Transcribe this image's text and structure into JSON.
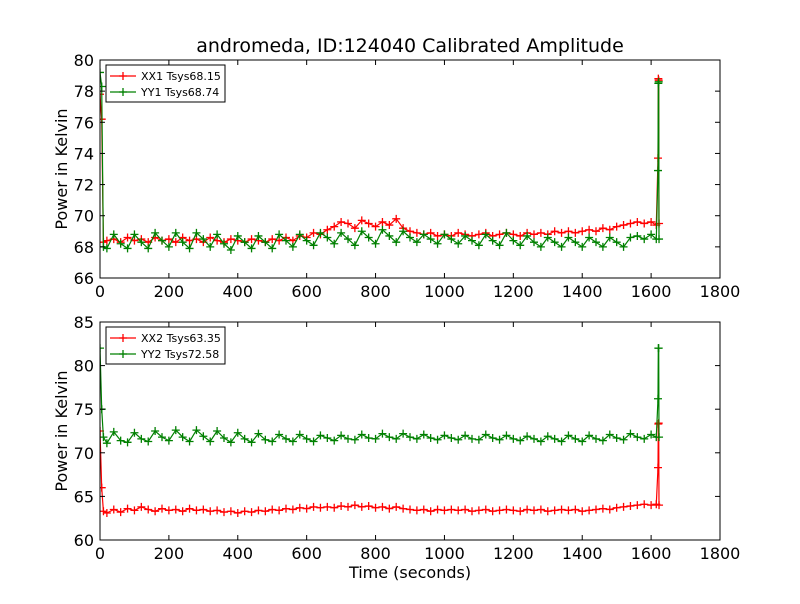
{
  "figure": {
    "title": "andromeda, ID:124040 Calibrated Amplitude",
    "xlabel": "Time (seconds)"
  },
  "chart_data": [
    {
      "type": "line",
      "ylabel": "Power in Kelvin",
      "xlim": [
        0,
        1800
      ],
      "ylim": [
        66,
        80
      ],
      "xticks": [
        "0",
        "200",
        "400",
        "600",
        "800",
        "1000",
        "1200",
        "1400",
        "1600",
        "1800"
      ],
      "yticks": [
        "66",
        "68",
        "70",
        "72",
        "74",
        "76",
        "78",
        "80"
      ],
      "legend": "top-left",
      "series": [
        {
          "name": "XX1 Tsys68.15",
          "color": "#ff0000",
          "marker": "+",
          "x": [
            0,
            5,
            10,
            20,
            40,
            60,
            80,
            100,
            120,
            140,
            160,
            180,
            200,
            220,
            240,
            260,
            280,
            300,
            320,
            340,
            360,
            380,
            400,
            420,
            440,
            460,
            480,
            500,
            520,
            540,
            560,
            580,
            600,
            620,
            640,
            660,
            680,
            700,
            720,
            740,
            760,
            780,
            800,
            820,
            840,
            860,
            880,
            900,
            920,
            940,
            960,
            980,
            1000,
            1020,
            1040,
            1060,
            1080,
            1100,
            1120,
            1140,
            1160,
            1180,
            1200,
            1220,
            1240,
            1260,
            1280,
            1300,
            1320,
            1340,
            1360,
            1380,
            1400,
            1420,
            1440,
            1460,
            1480,
            1500,
            1520,
            1540,
            1560,
            1580,
            1600,
            1615,
            1620,
            1621,
            1622,
            1623
          ],
          "y": [
            77.8,
            76.2,
            68.3,
            68.4,
            68.5,
            68.3,
            68.6,
            68.4,
            68.5,
            68.3,
            68.6,
            68.4,
            68.5,
            68.3,
            68.6,
            68.4,
            68.5,
            68.3,
            68.6,
            68.4,
            68.3,
            68.5,
            68.4,
            68.3,
            68.5,
            68.4,
            68.3,
            68.5,
            68.4,
            68.6,
            68.4,
            68.7,
            68.6,
            68.9,
            68.8,
            69.1,
            69.3,
            69.6,
            69.5,
            69.2,
            69.7,
            69.5,
            69.3,
            69.6,
            69.4,
            69.8,
            69.2,
            69.0,
            68.9,
            68.8,
            68.9,
            68.7,
            68.8,
            68.7,
            68.9,
            68.8,
            68.7,
            68.8,
            68.9,
            68.7,
            68.8,
            68.9,
            68.8,
            68.7,
            68.9,
            68.8,
            68.9,
            68.8,
            69.0,
            68.9,
            69.0,
            68.9,
            69.0,
            69.1,
            69.0,
            69.2,
            69.1,
            69.3,
            69.4,
            69.5,
            69.6,
            69.5,
            69.6,
            69.4,
            73.7,
            78.8,
            78.7,
            69.5
          ]
        },
        {
          "name": "YY1 Tsys68.74",
          "color": "#008000",
          "marker": "+",
          "x": [
            0,
            5,
            10,
            20,
            40,
            60,
            80,
            100,
            120,
            140,
            160,
            180,
            200,
            220,
            240,
            260,
            280,
            300,
            320,
            340,
            360,
            380,
            400,
            420,
            440,
            460,
            480,
            500,
            520,
            540,
            560,
            580,
            600,
            620,
            640,
            660,
            680,
            700,
            720,
            740,
            760,
            780,
            800,
            820,
            840,
            860,
            880,
            900,
            920,
            940,
            960,
            980,
            1000,
            1020,
            1040,
            1060,
            1080,
            1100,
            1120,
            1140,
            1160,
            1180,
            1200,
            1220,
            1240,
            1260,
            1280,
            1300,
            1320,
            1340,
            1360,
            1380,
            1400,
            1420,
            1440,
            1460,
            1480,
            1500,
            1520,
            1540,
            1560,
            1580,
            1600,
            1615,
            1620,
            1621,
            1622,
            1623
          ],
          "y": [
            79.2,
            78.3,
            68.0,
            67.9,
            68.8,
            68.2,
            67.9,
            68.8,
            68.3,
            67.9,
            68.9,
            68.4,
            68.0,
            68.9,
            68.3,
            67.9,
            68.9,
            68.5,
            68.0,
            68.8,
            68.2,
            67.8,
            68.7,
            68.3,
            67.9,
            68.7,
            68.3,
            67.9,
            68.8,
            68.4,
            68.0,
            68.8,
            68.4,
            68.1,
            68.9,
            68.6,
            68.2,
            68.9,
            68.5,
            68.1,
            69.0,
            68.6,
            68.2,
            69.1,
            68.7,
            68.3,
            69.0,
            68.6,
            68.3,
            68.8,
            68.5,
            68.2,
            68.8,
            68.5,
            68.2,
            68.7,
            68.4,
            68.1,
            68.8,
            68.4,
            68.1,
            68.9,
            68.4,
            68.1,
            68.7,
            68.3,
            68.0,
            68.6,
            68.3,
            68.0,
            68.6,
            68.3,
            68.0,
            68.6,
            68.3,
            68.0,
            68.6,
            68.3,
            68.0,
            68.6,
            68.7,
            68.5,
            68.8,
            68.5,
            72.9,
            78.5,
            78.6,
            68.5
          ]
        }
      ]
    },
    {
      "type": "line",
      "ylabel": "Power in Kelvin",
      "xlim": [
        0,
        1800
      ],
      "ylim": [
        60,
        85
      ],
      "xticks": [
        "0",
        "200",
        "400",
        "600",
        "800",
        "1000",
        "1200",
        "1400",
        "1600",
        "1800"
      ],
      "yticks": [
        "60",
        "65",
        "70",
        "75",
        "80",
        "85"
      ],
      "legend": "top-left",
      "series": [
        {
          "name": "XX2 Tsys63.35",
          "color": "#ff0000",
          "marker": "+",
          "x": [
            0,
            5,
            10,
            20,
            40,
            60,
            80,
            100,
            120,
            140,
            160,
            180,
            200,
            220,
            240,
            260,
            280,
            300,
            320,
            340,
            360,
            380,
            400,
            420,
            440,
            460,
            480,
            500,
            520,
            540,
            560,
            580,
            600,
            620,
            640,
            660,
            680,
            700,
            720,
            740,
            760,
            780,
            800,
            820,
            840,
            860,
            880,
            900,
            920,
            940,
            960,
            980,
            1000,
            1020,
            1040,
            1060,
            1080,
            1100,
            1120,
            1140,
            1160,
            1180,
            1200,
            1220,
            1240,
            1260,
            1280,
            1300,
            1320,
            1340,
            1360,
            1380,
            1400,
            1420,
            1440,
            1460,
            1480,
            1500,
            1520,
            1540,
            1560,
            1580,
            1600,
            1615,
            1620,
            1621,
            1622,
            1623
          ],
          "y": [
            72.5,
            66.0,
            63.3,
            63.1,
            63.5,
            63.2,
            63.6,
            63.4,
            63.8,
            63.5,
            63.3,
            63.6,
            63.4,
            63.5,
            63.3,
            63.6,
            63.4,
            63.5,
            63.3,
            63.4,
            63.2,
            63.3,
            63.1,
            63.3,
            63.2,
            63.4,
            63.3,
            63.5,
            63.4,
            63.6,
            63.5,
            63.7,
            63.6,
            63.8,
            63.7,
            63.8,
            63.7,
            63.9,
            63.8,
            64.0,
            63.8,
            63.9,
            63.7,
            63.8,
            63.6,
            63.8,
            63.6,
            63.5,
            63.4,
            63.5,
            63.3,
            63.5,
            63.4,
            63.5,
            63.4,
            63.5,
            63.3,
            63.4,
            63.5,
            63.3,
            63.4,
            63.5,
            63.4,
            63.3,
            63.5,
            63.4,
            63.5,
            63.3,
            63.4,
            63.5,
            63.4,
            63.5,
            63.3,
            63.4,
            63.5,
            63.6,
            63.5,
            63.7,
            63.8,
            63.9,
            64.0,
            64.1,
            64.0,
            64.1,
            68.3,
            73.3,
            73.4,
            64.0
          ]
        },
        {
          "name": "YY2 Tsys72.58",
          "color": "#008000",
          "marker": "+",
          "x": [
            0,
            5,
            10,
            20,
            40,
            60,
            80,
            100,
            120,
            140,
            160,
            180,
            200,
            220,
            240,
            260,
            280,
            300,
            320,
            340,
            360,
            380,
            400,
            420,
            440,
            460,
            480,
            500,
            520,
            540,
            560,
            580,
            600,
            620,
            640,
            660,
            680,
            700,
            720,
            740,
            760,
            780,
            800,
            820,
            840,
            860,
            880,
            900,
            920,
            940,
            960,
            980,
            1000,
            1020,
            1040,
            1060,
            1080,
            1100,
            1120,
            1140,
            1160,
            1180,
            1200,
            1220,
            1240,
            1260,
            1280,
            1300,
            1320,
            1340,
            1360,
            1380,
            1400,
            1420,
            1440,
            1460,
            1480,
            1500,
            1520,
            1540,
            1560,
            1580,
            1600,
            1615,
            1620,
            1621,
            1622,
            1623
          ],
          "y": [
            82.0,
            75.0,
            71.8,
            71.1,
            72.4,
            71.4,
            71.2,
            72.3,
            71.6,
            71.3,
            72.5,
            71.8,
            71.4,
            72.6,
            71.8,
            71.3,
            72.6,
            71.9,
            71.3,
            72.5,
            71.7,
            71.2,
            72.3,
            71.6,
            71.2,
            72.2,
            71.5,
            71.3,
            72.1,
            71.6,
            71.3,
            72.1,
            71.6,
            71.3,
            72.0,
            71.7,
            71.4,
            72.0,
            71.6,
            71.5,
            72.1,
            71.7,
            71.6,
            72.2,
            71.8,
            71.6,
            72.2,
            71.8,
            71.6,
            72.1,
            71.7,
            71.5,
            72.0,
            71.7,
            71.5,
            72.0,
            71.6,
            71.5,
            72.1,
            71.7,
            71.5,
            72.0,
            71.6,
            71.4,
            71.9,
            71.6,
            71.3,
            71.9,
            71.6,
            71.3,
            72.0,
            71.6,
            71.3,
            72.0,
            71.6,
            71.4,
            72.1,
            71.7,
            71.5,
            72.2,
            71.8,
            71.6,
            72.1,
            71.8,
            76.2,
            82.0,
            82.0,
            71.8
          ]
        }
      ]
    }
  ]
}
